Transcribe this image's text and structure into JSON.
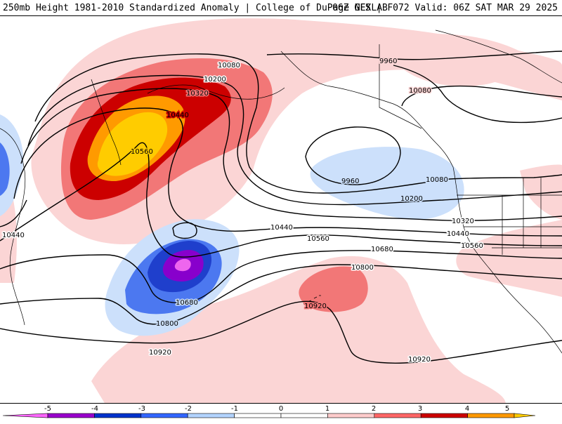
{
  "header": {
    "title": "250mb Height 1981-2010 Standardized Anomaly | College of DuPage NEXLAB",
    "valid": "06Z GFS | F072 Valid: 06Z SAT MAR 29 2025"
  },
  "contour_labels": {
    "c10080_nw": "10080",
    "c10200_nw": "10200",
    "c10320_nw": "10320",
    "c10440_nw": "10440",
    "c10560_nw": "10560",
    "c9960_ne": "9960",
    "c10080_ne": "10080",
    "c9960_low": "9960",
    "c10080_coast": "10080",
    "c10200_mid": "10200",
    "c10320_coast": "10320",
    "c10440_coast": "10440",
    "c10560_coast": "10560",
    "c10440_mid": "10440",
    "c10560_mid": "10560",
    "c10680_mid": "10680",
    "c10800_mid": "10800",
    "c10680_low": "10680",
    "c10800_low": "10800",
    "c10920_sw": "10920",
    "c10920_high": "10920",
    "c10920_se": "10920",
    "c10440_w": "10440"
  },
  "colorbar": {
    "ticks": [
      "-5",
      "-4",
      "-3",
      "-2",
      "-1",
      "0",
      "1",
      "2",
      "3",
      "4",
      "5"
    ],
    "colors": [
      "#ff66ff",
      "#9900cc",
      "#0033cc",
      "#3366ff",
      "#b3d4ff",
      "#ffffff",
      "#ffffff",
      "#ffcccc",
      "#ff6666",
      "#cc0000",
      "#ff9900",
      "#ffcc00"
    ]
  },
  "palette": {
    "neg5": "#ee66ee",
    "neg4": "#8800cc",
    "neg3": "#1f3fcc",
    "neg2": "#4c78f0",
    "neg1": "#cce0fb",
    "pos1": "#fbd5d5",
    "pos2": "#f27777",
    "pos3": "#cc0000",
    "pos4": "#ff9a00",
    "pos5": "#ffcc00"
  }
}
